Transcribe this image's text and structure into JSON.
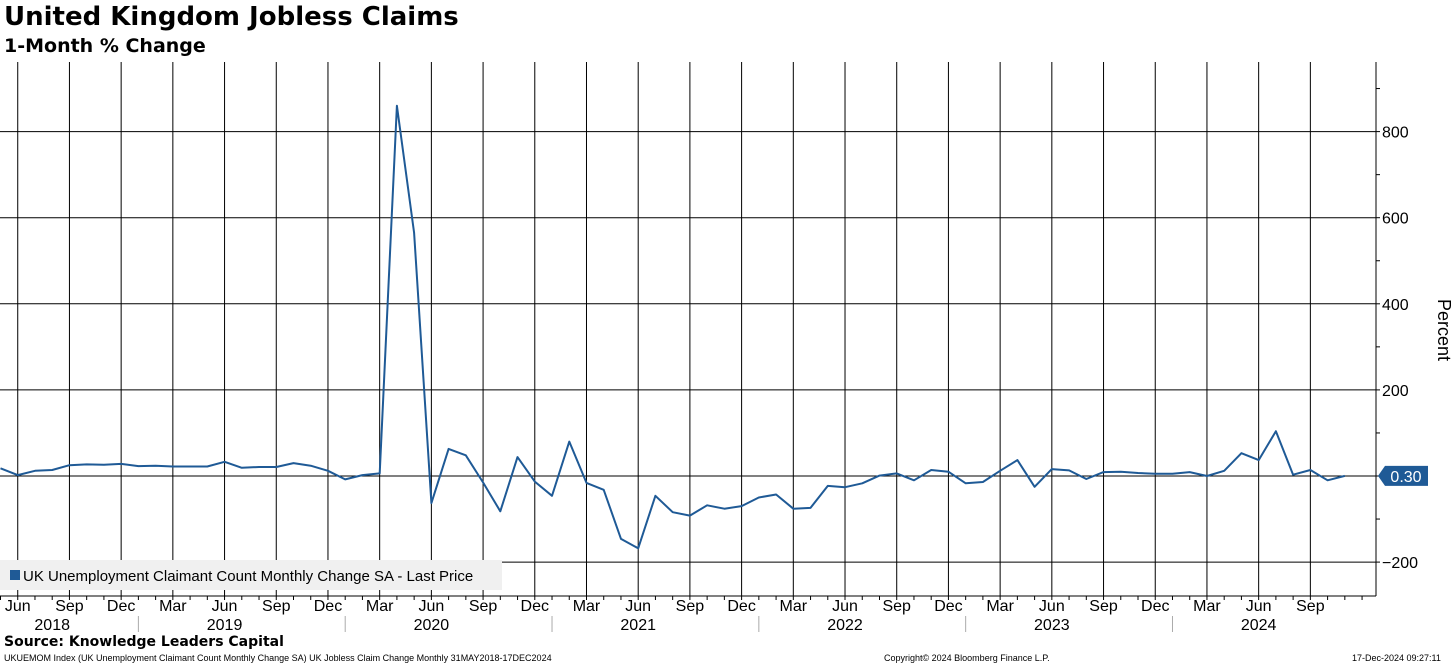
{
  "header": {
    "title": "United Kingdom Jobless Claims",
    "subtitle": "1-Month % Change"
  },
  "footer": {
    "source": "Source: Knowledge Leaders Capital",
    "index_info": "UKUEMOM Index (UK Unemployment Claimant Count Monthly Change SA) UK Jobless Claim Change  Monthly 31MAY2018-17DEC2024",
    "copyright": "Copyright© 2024 Bloomberg Finance L.P.",
    "timestamp": "17-Dec-2024 09:27:11"
  },
  "colors": {
    "series": "#1f5a96",
    "grid": "#000000",
    "background": "#ffffff",
    "last_price_badge": "#1f5a96"
  },
  "chart_data": {
    "type": "line",
    "title": "United Kingdom Jobless Claims",
    "subtitle": "1-Month % Change",
    "ylabel": "Percent",
    "ylim": [
      -270,
      920
    ],
    "yticks": [
      -200,
      200,
      400,
      600,
      800
    ],
    "grid": true,
    "legend_position": "bottom-left",
    "last_value_label": "0.30",
    "x_start": "2018-05",
    "month_tick_labels": [
      {
        "date": "2018-06",
        "label": "Jun"
      },
      {
        "date": "2018-09",
        "label": "Sep"
      },
      {
        "date": "2018-12",
        "label": "Dec"
      },
      {
        "date": "2019-03",
        "label": "Mar"
      },
      {
        "date": "2019-06",
        "label": "Jun"
      },
      {
        "date": "2019-09",
        "label": "Sep"
      },
      {
        "date": "2019-12",
        "label": "Dec"
      },
      {
        "date": "2020-03",
        "label": "Mar"
      },
      {
        "date": "2020-06",
        "label": "Jun"
      },
      {
        "date": "2020-09",
        "label": "Sep"
      },
      {
        "date": "2020-12",
        "label": "Dec"
      },
      {
        "date": "2021-03",
        "label": "Mar"
      },
      {
        "date": "2021-06",
        "label": "Jun"
      },
      {
        "date": "2021-09",
        "label": "Sep"
      },
      {
        "date": "2021-12",
        "label": "Dec"
      },
      {
        "date": "2022-03",
        "label": "Mar"
      },
      {
        "date": "2022-06",
        "label": "Jun"
      },
      {
        "date": "2022-09",
        "label": "Sep"
      },
      {
        "date": "2022-12",
        "label": "Dec"
      },
      {
        "date": "2023-03",
        "label": "Mar"
      },
      {
        "date": "2023-06",
        "label": "Jun"
      },
      {
        "date": "2023-09",
        "label": "Sep"
      },
      {
        "date": "2023-12",
        "label": "Dec"
      },
      {
        "date": "2024-03",
        "label": "Mar"
      },
      {
        "date": "2024-06",
        "label": "Jun"
      },
      {
        "date": "2024-09",
        "label": "Sep"
      }
    ],
    "year_labels": [
      {
        "date": "2018-08",
        "label": "2018"
      },
      {
        "date": "2019-06",
        "label": "2019"
      },
      {
        "date": "2020-06",
        "label": "2020"
      },
      {
        "date": "2021-06",
        "label": "2021"
      },
      {
        "date": "2022-06",
        "label": "2022"
      },
      {
        "date": "2023-06",
        "label": "2023"
      },
      {
        "date": "2024-06",
        "label": "2024"
      }
    ],
    "series": [
      {
        "name": "UK Unemployment Claimant Count Monthly Change SA - Last Price",
        "color": "#1f5a96",
        "x": [
          "2018-05",
          "2018-06",
          "2018-07",
          "2018-08",
          "2018-09",
          "2018-10",
          "2018-11",
          "2018-12",
          "2019-01",
          "2019-02",
          "2019-03",
          "2019-04",
          "2019-05",
          "2019-06",
          "2019-07",
          "2019-08",
          "2019-09",
          "2019-10",
          "2019-11",
          "2019-12",
          "2020-01",
          "2020-02",
          "2020-03",
          "2020-04",
          "2020-05",
          "2020-06",
          "2020-07",
          "2020-08",
          "2020-09",
          "2020-10",
          "2020-11",
          "2020-12",
          "2021-01",
          "2021-02",
          "2021-03",
          "2021-04",
          "2021-05",
          "2021-06",
          "2021-07",
          "2021-08",
          "2021-09",
          "2021-10",
          "2021-11",
          "2021-12",
          "2022-01",
          "2022-02",
          "2022-03",
          "2022-04",
          "2022-05",
          "2022-06",
          "2022-07",
          "2022-08",
          "2022-09",
          "2022-10",
          "2022-11",
          "2022-12",
          "2023-01",
          "2023-02",
          "2023-03",
          "2023-04",
          "2023-05",
          "2023-06",
          "2023-07",
          "2023-08",
          "2023-09",
          "2023-10",
          "2023-11",
          "2023-12",
          "2024-01",
          "2024-02",
          "2024-03",
          "2024-04",
          "2024-05",
          "2024-06",
          "2024-07",
          "2024-08",
          "2024-09",
          "2024-10",
          "2024-11"
        ],
        "values": [
          18,
          2,
          12,
          14,
          25,
          27,
          26,
          28,
          23,
          24,
          22,
          22,
          22,
          33,
          19,
          21,
          21,
          30,
          24,
          12,
          -8,
          2,
          6,
          860,
          565,
          -63,
          63,
          48,
          -15,
          -82,
          44,
          -13,
          -46,
          80,
          -16,
          -32,
          -146,
          -168,
          -46,
          -84,
          -92,
          -68,
          -76,
          -70,
          -50,
          -43,
          -76,
          -74,
          -23,
          -26,
          -17,
          1,
          6,
          -10,
          14,
          10,
          -17,
          -14,
          12,
          37,
          -25,
          16,
          13,
          -7,
          9,
          10,
          7,
          5,
          5,
          9,
          0,
          12,
          53,
          37,
          104,
          3,
          14,
          -10,
          0.3
        ]
      }
    ]
  }
}
